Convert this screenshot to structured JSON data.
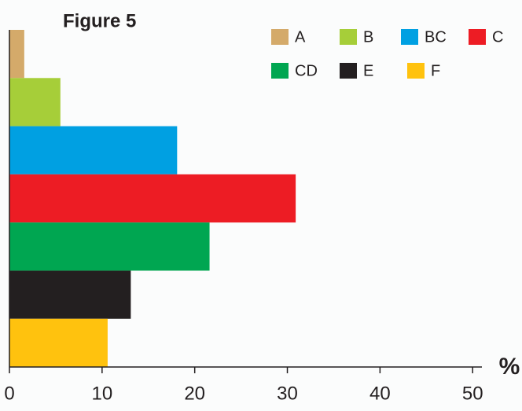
{
  "chart_data": {
    "type": "bar",
    "orientation": "horizontal",
    "title": "Figure 5",
    "x_label": "%",
    "categories": [
      "A",
      "B",
      "BC",
      "C",
      "CD",
      "E",
      "F"
    ],
    "values": [
      1.6,
      5.5,
      18.1,
      30.9,
      21.6,
      13.1,
      10.6
    ],
    "colors": [
      "#d4aa6a",
      "#a6ce39",
      "#00a0e2",
      "#ed1c24",
      "#00a651",
      "#231f20",
      "#ffc20e"
    ],
    "xlim": [
      0,
      51
    ],
    "xticks": [
      0,
      10,
      20,
      30,
      40,
      50
    ],
    "legend": "top-right"
  }
}
